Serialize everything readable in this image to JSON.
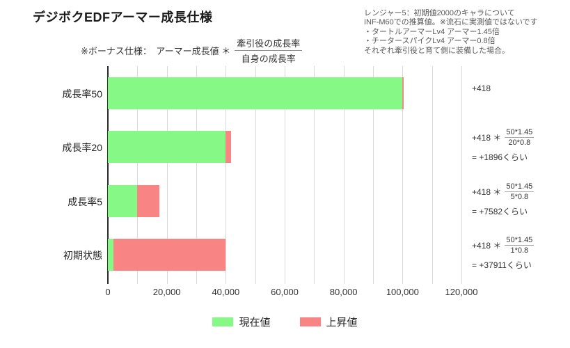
{
  "title": "デジボクEDFアーマー成長仕様",
  "formula_note": {
    "prefix": "※ボーナス仕様：　アーマー成長値 ＊",
    "fraction_numerator": "牽引役の成長率",
    "fraction_denominator": "自身の成長率"
  },
  "side_note_lines": [
    "レンジャー5：初期値2000のキャラについて",
    "INF-M60での推算値。※流石に実測値ではないです",
    "・タートルアーマーLv4 アーマー1.45倍",
    "・チータースパイクLv4 アーマー0.8倍",
    "それぞれ牽引役と育て側に装備した場合。"
  ],
  "chart_data": {
    "type": "bar",
    "orientation": "horizontal",
    "stacked": true,
    "grid": true,
    "categories": [
      "成長率50",
      "成長率20",
      "成長率5",
      "初期状態"
    ],
    "series": [
      {
        "name": "現在値",
        "color": "#85f885",
        "values": [
          100000,
          40000,
          10000,
          2000
        ]
      },
      {
        "name": "上昇値",
        "color": "#f88484",
        "values": [
          418,
          1896,
          7582,
          37911
        ]
      }
    ],
    "xlim": [
      0,
      120000
    ],
    "x_tick_interval": 20000,
    "x_grid_interval": 10000,
    "x_tick_labels": [
      "0",
      "20,000",
      "40,000",
      "60,000",
      "80,000",
      "100,000",
      "120,000"
    ],
    "legend_position": "bottom",
    "annotations": [
      {
        "lead": "+418",
        "numerator": "",
        "denominator": "",
        "result": ""
      },
      {
        "lead": "+418 ＊",
        "numerator": "50*1.45",
        "denominator": "20*0.8",
        "result": "= +1896くらい"
      },
      {
        "lead": "+418 ＊",
        "numerator": "50*1.45",
        "denominator": "5*0.8",
        "result": "= +7582くらい"
      },
      {
        "lead": "+418 ＊",
        "numerator": "50*1.45",
        "denominator": "1*0.8",
        "result": "= +37911くらい"
      }
    ]
  },
  "colors": {
    "gridline": "#d9d9d9",
    "axis": "#2b2b2b",
    "note_text": "#595959"
  }
}
